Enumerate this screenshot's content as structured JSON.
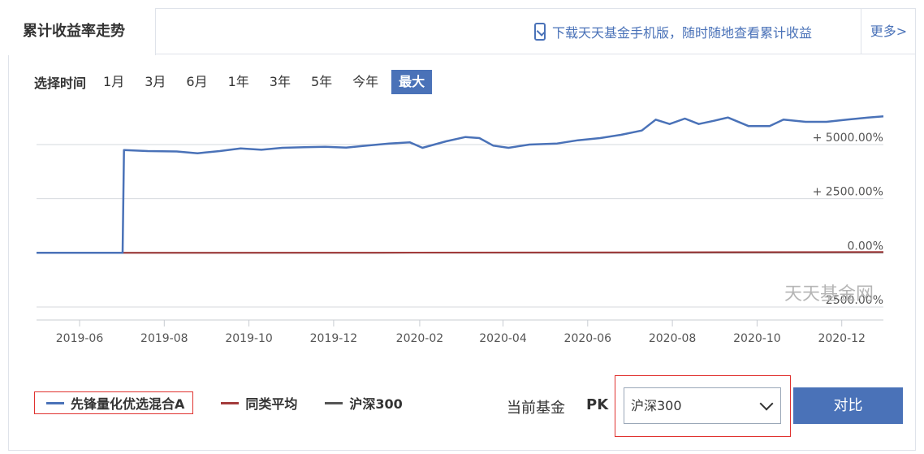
{
  "tabs": {
    "active_label": "累计收益率走势",
    "download_text": "下载天天基金手机版，随时随地查看累计收益",
    "more_label": "更多>"
  },
  "time_select": {
    "label": "选择时间",
    "options": [
      "1月",
      "3月",
      "6月",
      "1年",
      "3年",
      "5年",
      "今年",
      "最大"
    ],
    "active_index": 7
  },
  "watermark": "天天基金网",
  "colors": {
    "fund": "#4a72b8",
    "category_avg": "#a33b3b",
    "index": "#555555",
    "accent": "#4a72b8",
    "highlight_border": "#e0322f"
  },
  "chart_data": {
    "type": "line",
    "title": "",
    "xlabel": "",
    "ylabel": "",
    "x_ticks": [
      "2019-06",
      "2019-08",
      "2019-10",
      "2019-12",
      "2020-02",
      "2020-04",
      "2020-06",
      "2020-08",
      "2020-10",
      "2020-12"
    ],
    "y_ticks": [
      {
        "value": 5000,
        "label": "+ 5000.00%"
      },
      {
        "value": 2500,
        "label": "+ 2500.00%"
      },
      {
        "value": 0,
        "label": "0.00%"
      },
      {
        "value": -2500,
        "label": "-2500.00%"
      }
    ],
    "ylim": [
      -3100,
      6800
    ],
    "xlim": [
      "2019-05-01",
      "2020-12-31"
    ],
    "grid": true,
    "series": [
      {
        "name": "先锋量化优选混合A",
        "points": [
          [
            "2019-05-01",
            0
          ],
          [
            "2019-06-05",
            0
          ],
          [
            "2019-07-02",
            0
          ],
          [
            "2019-07-03",
            4750
          ],
          [
            "2019-07-20",
            4700
          ],
          [
            "2019-08-10",
            4680
          ],
          [
            "2019-08-25",
            4600
          ],
          [
            "2019-09-10",
            4700
          ],
          [
            "2019-09-25",
            4820
          ],
          [
            "2019-10-10",
            4760
          ],
          [
            "2019-10-25",
            4850
          ],
          [
            "2019-11-10",
            4880
          ],
          [
            "2019-11-25",
            4900
          ],
          [
            "2019-12-10",
            4860
          ],
          [
            "2019-12-25",
            4950
          ],
          [
            "2020-01-10",
            5050
          ],
          [
            "2020-01-25",
            5100
          ],
          [
            "2020-02-03",
            4850
          ],
          [
            "2020-02-20",
            5150
          ],
          [
            "2020-03-05",
            5350
          ],
          [
            "2020-03-15",
            5300
          ],
          [
            "2020-03-25",
            4950
          ],
          [
            "2020-04-05",
            4850
          ],
          [
            "2020-04-20",
            5000
          ],
          [
            "2020-05-10",
            5050
          ],
          [
            "2020-05-25",
            5200
          ],
          [
            "2020-06-10",
            5300
          ],
          [
            "2020-06-25",
            5450
          ],
          [
            "2020-07-10",
            5650
          ],
          [
            "2020-07-20",
            6150
          ],
          [
            "2020-07-30",
            5950
          ],
          [
            "2020-08-10",
            6200
          ],
          [
            "2020-08-20",
            5950
          ],
          [
            "2020-08-31",
            6100
          ],
          [
            "2020-09-10",
            6250
          ],
          [
            "2020-09-25",
            5850
          ],
          [
            "2020-10-10",
            5850
          ],
          [
            "2020-10-20",
            6150
          ],
          [
            "2020-11-05",
            6050
          ],
          [
            "2020-11-20",
            6050
          ],
          [
            "2020-12-05",
            6150
          ],
          [
            "2020-12-20",
            6250
          ],
          [
            "2020-12-31",
            6300
          ]
        ]
      },
      {
        "name": "同类平均",
        "points": [
          [
            "2019-05-01",
            0
          ],
          [
            "2019-12-31",
            10
          ],
          [
            "2020-06-30",
            25
          ],
          [
            "2020-12-31",
            40
          ]
        ]
      },
      {
        "name": "沪深300",
        "points": [
          [
            "2019-05-01",
            0
          ],
          [
            "2019-12-31",
            5
          ],
          [
            "2020-06-30",
            10
          ],
          [
            "2020-12-31",
            20
          ]
        ]
      }
    ],
    "legend_position": "bottom-left"
  },
  "pk": {
    "current_label": "当前基金",
    "pk_label": "PK",
    "selected": "沪深300",
    "button_label": "对比"
  }
}
